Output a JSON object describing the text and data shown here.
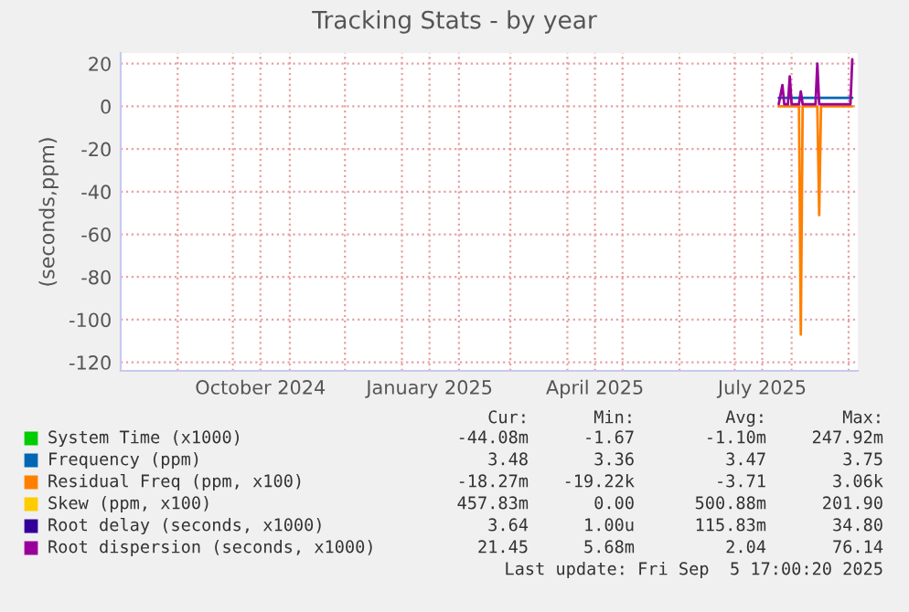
{
  "chart_data": {
    "type": "line",
    "title": "Tracking Stats - by year",
    "ylabel": "(seconds,ppm)",
    "xlim": [
      "2024-08-01",
      "2025-09-06"
    ],
    "xticks": [
      {
        "value": "2024-09-01",
        "label": null
      },
      {
        "value": "2024-10-01",
        "label": null
      },
      {
        "value": "2024-10-16",
        "label": "October 2024"
      },
      {
        "value": "2024-11-01",
        "label": null
      },
      {
        "value": "2024-12-01",
        "label": null
      },
      {
        "value": "2025-01-01",
        "label": null
      },
      {
        "value": "2025-01-16",
        "label": "January 2025"
      },
      {
        "value": "2025-02-01",
        "label": null
      },
      {
        "value": "2025-03-01",
        "label": null
      },
      {
        "value": "2025-04-01",
        "label": null
      },
      {
        "value": "2025-04-16",
        "label": "April 2025"
      },
      {
        "value": "2025-05-01",
        "label": null
      },
      {
        "value": "2025-06-01",
        "label": null
      },
      {
        "value": "2025-07-01",
        "label": null
      },
      {
        "value": "2025-07-16",
        "label": "July 2025"
      },
      {
        "value": "2025-08-01",
        "label": null
      },
      {
        "value": "2025-09-01",
        "label": null
      }
    ],
    "ylim": [
      -124,
      25
    ],
    "yticks": [
      -120,
      -100,
      -80,
      -60,
      -40,
      -20,
      0,
      20
    ],
    "grid": true,
    "legend": "bottom",
    "marker": "none",
    "line_style": "solid",
    "series": [
      {
        "name": "System Time (x1000)",
        "color": "#00cc00"
      },
      {
        "name": "Frequency (ppm)",
        "color": "#0066b3",
        "x": [
          "2025-07-25",
          "2025-09-03"
        ],
        "values": [
          4,
          4
        ]
      },
      {
        "name": "Residual Freq (ppm, x100)",
        "color": "#ff8000",
        "x": [
          "2025-07-25",
          "2025-08-05",
          "2025-08-06",
          "2025-08-07",
          "2025-08-15",
          "2025-08-16",
          "2025-08-17",
          "2025-09-03"
        ],
        "values": [
          0,
          0,
          -107,
          0,
          0,
          -51,
          0,
          0
        ]
      },
      {
        "name": "Skew (ppm, x100)",
        "color": "#ffcc00"
      },
      {
        "name": "Root delay (seconds, x1000)",
        "color": "#330099"
      },
      {
        "name": "Root dispersion (seconds, x1000)",
        "color": "#990099",
        "x": [
          "2025-07-25",
          "2025-07-27",
          "2025-07-28",
          "2025-07-30",
          "2025-07-31",
          "2025-08-01",
          "2025-08-05",
          "2025-08-06",
          "2025-08-07",
          "2025-08-14",
          "2025-08-15",
          "2025-08-16",
          "2025-09-02",
          "2025-09-03"
        ],
        "values": [
          1,
          10,
          1,
          1,
          14,
          1,
          1,
          7,
          1,
          1,
          20,
          1,
          1,
          22
        ]
      }
    ],
    "annotations": [
      "Cur:",
      "Min:",
      "Avg:",
      "Max:",
      "-44.08m",
      "-1.67",
      "-1.10m",
      "247.92m",
      "3.48",
      "3.36",
      "3.47",
      "3.75",
      "-18.27m",
      "-19.22k",
      "-3.71",
      "3.06k",
      "457.83m",
      "0.00",
      "500.88m",
      "201.90",
      "3.64",
      "1.00u",
      "115.83m",
      "34.80",
      "21.45",
      "5.68m",
      "2.04",
      "76.14",
      "Last update: Fri Sep  5 17:00:20 2025"
    ]
  }
}
